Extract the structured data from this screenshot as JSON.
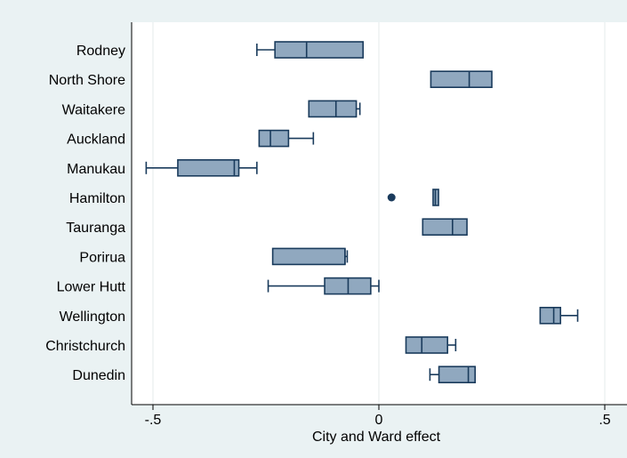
{
  "chart_data": {
    "type": "boxplot",
    "orientation": "horizontal",
    "xlabel": "City and Ward effect",
    "xlim": [
      -0.55,
      0.55
    ],
    "xticks": [
      -0.5,
      0,
      0.5
    ],
    "xtick_labels": [
      "-.5",
      "0",
      ".5"
    ],
    "grid": "vertical",
    "categories": [
      "Rodney",
      "North Shore",
      "Waitakere",
      "Auckland",
      "Manukau",
      "Hamilton",
      "Tauranga",
      "Porirua",
      "Lower Hutt",
      "Wellington",
      "Christchurch",
      "Dunedin"
    ],
    "boxes": [
      {
        "name": "Rodney",
        "whisker_low": -0.27,
        "q1": -0.23,
        "median": -0.16,
        "q3": -0.035,
        "whisker_high": -0.035,
        "outliers": []
      },
      {
        "name": "North Shore",
        "whisker_low": 0.115,
        "q1": 0.115,
        "median": 0.2,
        "q3": 0.25,
        "whisker_high": 0.25,
        "outliers": []
      },
      {
        "name": "Waitakere",
        "whisker_low": -0.155,
        "q1": -0.155,
        "median": -0.095,
        "q3": -0.05,
        "whisker_high": -0.042,
        "outliers": []
      },
      {
        "name": "Auckland",
        "whisker_low": -0.265,
        "q1": -0.265,
        "median": -0.24,
        "q3": -0.2,
        "whisker_high": -0.145,
        "outliers": []
      },
      {
        "name": "Manukau",
        "whisker_low": -0.515,
        "q1": -0.445,
        "median": -0.32,
        "q3": -0.31,
        "whisker_high": -0.27,
        "outliers": []
      },
      {
        "name": "Hamilton",
        "whisker_low": 0.12,
        "q1": 0.12,
        "median": 0.125,
        "q3": 0.132,
        "whisker_high": 0.132,
        "outliers": [
          0.028
        ]
      },
      {
        "name": "Tauranga",
        "whisker_low": 0.097,
        "q1": 0.097,
        "median": 0.163,
        "q3": 0.195,
        "whisker_high": 0.195,
        "outliers": []
      },
      {
        "name": "Porirua",
        "whisker_low": -0.235,
        "q1": -0.235,
        "median": -0.075,
        "q3": -0.075,
        "whisker_high": -0.07,
        "outliers": []
      },
      {
        "name": "Lower Hutt",
        "whisker_low": -0.245,
        "q1": -0.12,
        "median": -0.068,
        "q3": -0.018,
        "whisker_high": 0.0,
        "outliers": []
      },
      {
        "name": "Wellington",
        "whisker_low": 0.357,
        "q1": 0.357,
        "median": 0.387,
        "q3": 0.402,
        "whisker_high": 0.44,
        "outliers": []
      },
      {
        "name": "Christchurch",
        "whisker_low": 0.06,
        "q1": 0.06,
        "median": 0.095,
        "q3": 0.152,
        "whisker_high": 0.17,
        "outliers": []
      },
      {
        "name": "Dunedin",
        "whisker_low": 0.113,
        "q1": 0.133,
        "median": 0.198,
        "q3": 0.213,
        "whisker_high": 0.213,
        "outliers": []
      }
    ],
    "colors": {
      "background": "#eaf2f3",
      "plot_background": "#ffffff",
      "box_fill": "#90a8bf",
      "box_stroke": "#1a3b5c",
      "grid": "#e8eeee"
    }
  }
}
